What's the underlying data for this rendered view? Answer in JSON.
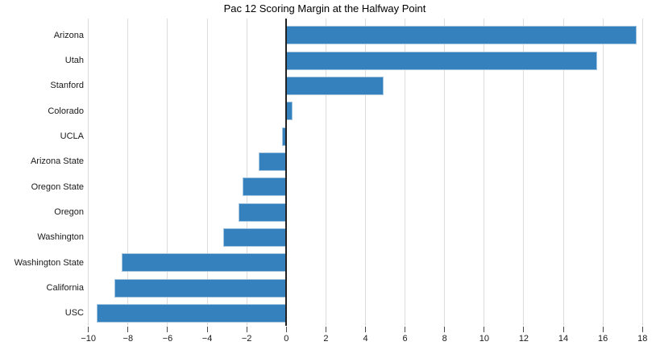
{
  "chart_data": {
    "type": "bar",
    "orientation": "horizontal",
    "title": "Pac 12 Scoring Margin at the Halfway Point",
    "categories": [
      "Arizona",
      "Utah",
      "Stanford",
      "Colorado",
      "UCLA",
      "Arizona State",
      "Oregon State",
      "Oregon",
      "Washington",
      "Washington State",
      "California",
      "USC"
    ],
    "values": [
      17.7,
      15.7,
      4.9,
      0.3,
      -0.2,
      -1.4,
      -2.2,
      -2.4,
      -3.2,
      -8.3,
      -8.7,
      -9.6
    ],
    "xlabel": "",
    "ylabel": "",
    "xlim": [
      -10.6,
      18.6
    ],
    "xticks": [
      -10,
      -8,
      -6,
      -4,
      -2,
      0,
      2,
      4,
      6,
      8,
      10,
      12,
      14,
      16,
      18
    ],
    "grid": true,
    "legend": false,
    "zero_line": true,
    "colors": {
      "bar_fill": "#3581bd",
      "bar_edge": "#a3c4df",
      "gridline": "#dcdcdc",
      "zero_line": "#212121",
      "tick_mark": "#4a4a4a",
      "label_text": "#1a1a1a",
      "title_text": "#000000",
      "background": "#ffffff"
    }
  }
}
